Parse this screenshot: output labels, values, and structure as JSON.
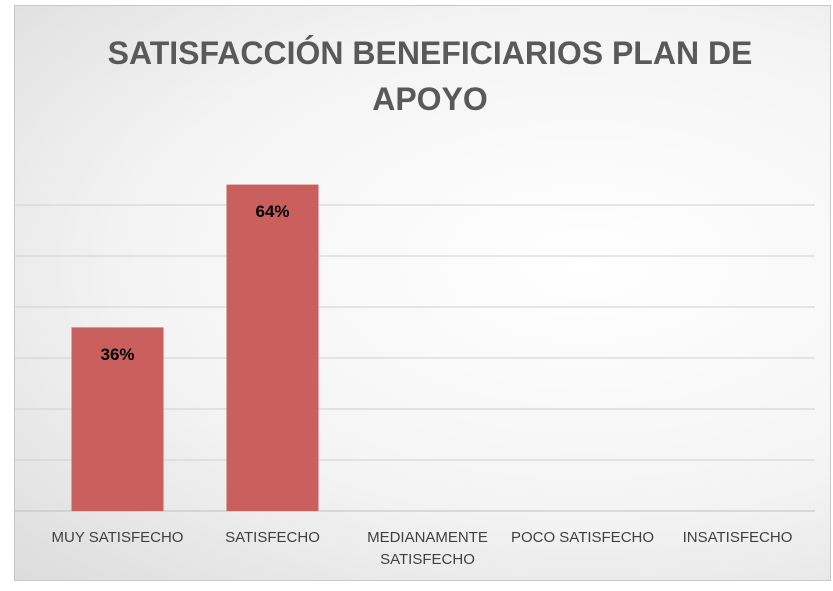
{
  "chart_data": {
    "type": "bar",
    "title": "SATISFACCIÓN BENEFICIARIOS PLAN DE APOYO",
    "categories": [
      "MUY SATISFECHO",
      "SATISFECHO",
      "MEDIANAMENTE SATISFECHO",
      "POCO SATISFECHO",
      "INSATISFECHO"
    ],
    "values": [
      36,
      64,
      null,
      null,
      null
    ],
    "value_labels": [
      "36%",
      "64%",
      null,
      null,
      null
    ],
    "color": "#c9605d",
    "ylim": [
      0,
      70
    ],
    "yticks": [
      0,
      10,
      20,
      30,
      40,
      50,
      60
    ],
    "grid": true
  }
}
